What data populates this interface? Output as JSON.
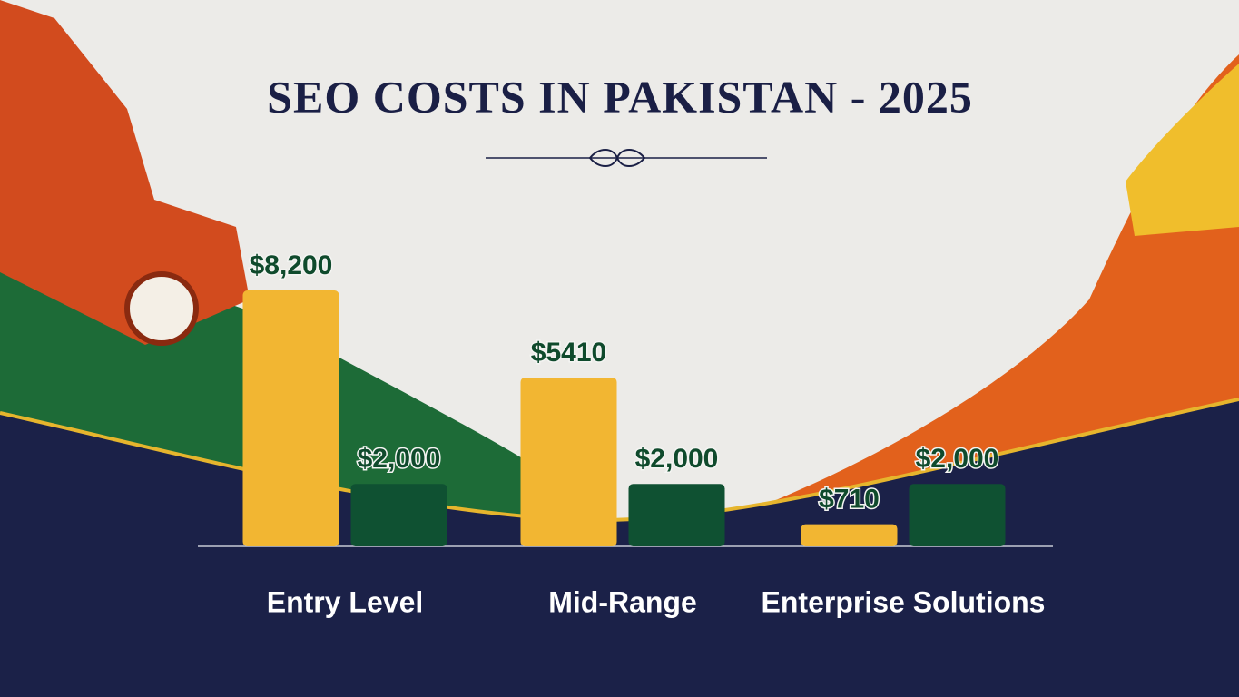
{
  "chart_data": {
    "type": "bar",
    "title": "SEO COSTS IN PAKISTAN - 2025",
    "categories": [
      "Entry Level",
      "Mid-Range",
      "Enterprise Solutions"
    ],
    "series": [
      {
        "color": "#f2b632",
        "values": [
          8200,
          5410,
          710
        ],
        "value_labels": [
          "$8,200",
          "$5410",
          "$710"
        ]
      },
      {
        "color": "#0f5132",
        "values": [
          2000,
          2000,
          2000
        ],
        "value_labels": [
          "$2,000",
          "$2,000",
          "$2,000"
        ]
      }
    ]
  }
}
